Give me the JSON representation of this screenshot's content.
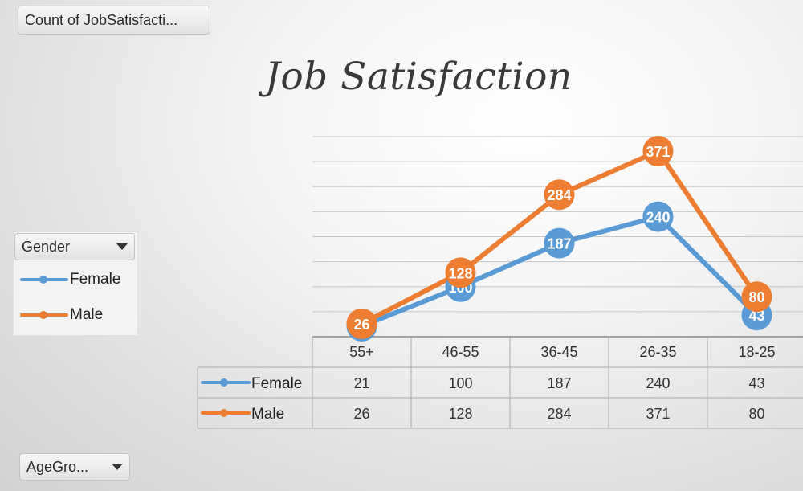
{
  "value_field_label": "Count of JobSatisfacti...",
  "legend_field": {
    "label": "Gender"
  },
  "axis_field": {
    "label": "AgeGro..."
  },
  "colors": {
    "female": "#5b9bd5",
    "male": "#ed7d31"
  },
  "chart_data": {
    "type": "line",
    "title": "Job Satisfaction",
    "categories": [
      "55+",
      "46-55",
      "36-45",
      "26-35",
      "18-25"
    ],
    "series": [
      {
        "name": "Female",
        "values": [
          21,
          100,
          187,
          240,
          43
        ],
        "color": "#5b9bd5"
      },
      {
        "name": "Male",
        "values": [
          26,
          128,
          284,
          371,
          80
        ],
        "color": "#ed7d31"
      }
    ],
    "ylim": [
      0,
      400
    ],
    "grid": true,
    "data_labels": true,
    "data_table": true,
    "legend": "left"
  }
}
